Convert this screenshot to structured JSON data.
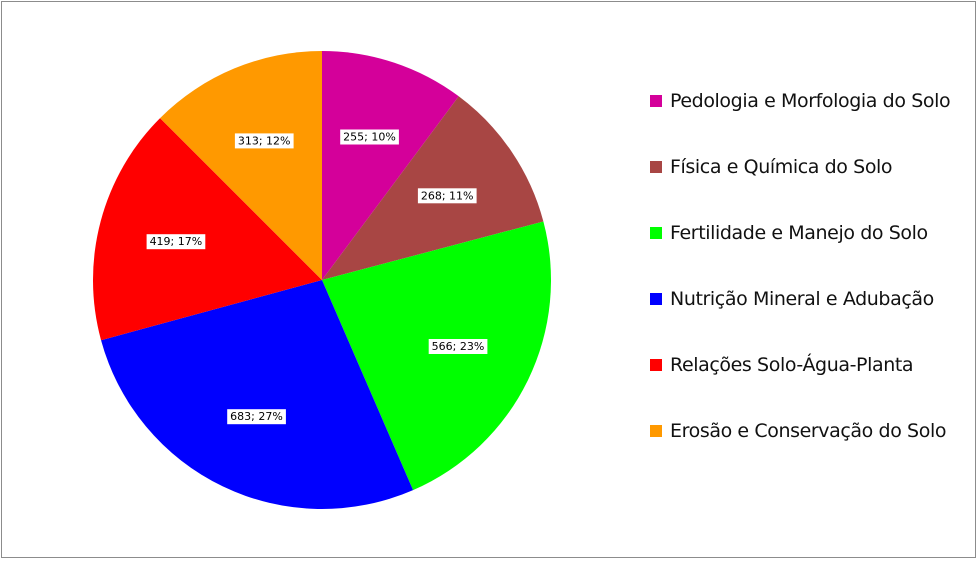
{
  "chart_data": {
    "type": "pie",
    "title": "",
    "start_angle_deg": 0,
    "direction": "clockwise",
    "legend_position": "right",
    "slices": [
      {
        "label": "Pedologia e Morfologia do Solo",
        "value": 255,
        "percent": "10%",
        "data_label": "255; 10%",
        "color": "#d4009a"
      },
      {
        "label": "Física e Química do Solo",
        "value": 268,
        "percent": "11%",
        "data_label": "268; 11%",
        "color": "#a84644"
      },
      {
        "label": "Fertilidade e Manejo do Solo",
        "value": 566,
        "percent": "23%",
        "data_label": "566; 23%",
        "color": "#00ff00"
      },
      {
        "label": "Nutrição Mineral e Adubação",
        "value": 683,
        "percent": "27%",
        "data_label": "683; 27%",
        "color": "#0000ff"
      },
      {
        "label": "Relações Solo-Água-Planta",
        "value": 419,
        "percent": "17%",
        "data_label": "419; 17%",
        "color": "#ff0000"
      },
      {
        "label": "Erosão e Conservação do Solo",
        "value": 313,
        "percent": "12%",
        "data_label": "313; 12%",
        "color": "#ff9900"
      }
    ]
  }
}
